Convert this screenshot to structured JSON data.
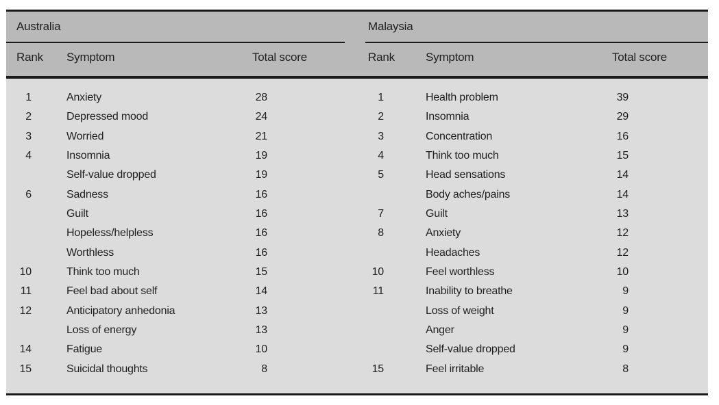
{
  "figure": {
    "colors": {
      "header_bg": "#b9b9b9",
      "body_bg": "#dcdcdd",
      "rule": "#1a1a1a",
      "text": "#1f1f1f"
    },
    "groups": [
      {
        "country": "Australia",
        "headers": {
          "rank": "Rank",
          "symptom": "Symptom",
          "score": "Total score"
        },
        "rows": [
          {
            "rank": "1",
            "symptom": "Anxiety",
            "score": "28"
          },
          {
            "rank": "2",
            "symptom": "Depressed mood",
            "score": "24"
          },
          {
            "rank": "3",
            "symptom": "Worried",
            "score": "21"
          },
          {
            "rank": "4",
            "symptom": "Insomnia",
            "score": "19"
          },
          {
            "rank": "",
            "symptom": "Self-value dropped",
            "score": "19"
          },
          {
            "rank": "6",
            "symptom": "Sadness",
            "score": "16"
          },
          {
            "rank": "",
            "symptom": "Guilt",
            "score": "16"
          },
          {
            "rank": "",
            "symptom": "Hopeless/helpless",
            "score": "16"
          },
          {
            "rank": "",
            "symptom": "Worthless",
            "score": "16"
          },
          {
            "rank": "10",
            "symptom": "Think too much",
            "score": "15"
          },
          {
            "rank": "11",
            "symptom": "Feel bad about self",
            "score": "14"
          },
          {
            "rank": "12",
            "symptom": "Anticipatory anhedonia",
            "score": "13"
          },
          {
            "rank": "",
            "symptom": "Loss of energy",
            "score": "13"
          },
          {
            "rank": "14",
            "symptom": "Fatigue",
            "score": "10"
          },
          {
            "rank": "15",
            "symptom": "Suicidal thoughts",
            "score": "8"
          }
        ]
      },
      {
        "country": "Malaysia",
        "headers": {
          "rank": "Rank",
          "symptom": "Symptom",
          "score": "Total score"
        },
        "rows": [
          {
            "rank": "1",
            "symptom": "Health problem",
            "score": "39"
          },
          {
            "rank": "2",
            "symptom": "Insomnia",
            "score": "29"
          },
          {
            "rank": "3",
            "symptom": "Concentration",
            "score": "16"
          },
          {
            "rank": "4",
            "symptom": "Think too much",
            "score": "15"
          },
          {
            "rank": "5",
            "symptom": "Head sensations",
            "score": "14"
          },
          {
            "rank": "",
            "symptom": "Body aches/pains",
            "score": "14"
          },
          {
            "rank": "7",
            "symptom": "Guilt",
            "score": "13"
          },
          {
            "rank": "8",
            "symptom": "Anxiety",
            "score": "12"
          },
          {
            "rank": "",
            "symptom": "Headaches",
            "score": "12"
          },
          {
            "rank": "10",
            "symptom": "Feel worthless",
            "score": "10"
          },
          {
            "rank": "11",
            "symptom": "Inability to breathe",
            "score": "9"
          },
          {
            "rank": "",
            "symptom": "Loss of weight",
            "score": "9"
          },
          {
            "rank": "",
            "symptom": "Anger",
            "score": "9"
          },
          {
            "rank": "",
            "symptom": "Self-value dropped",
            "score": "9"
          },
          {
            "rank": "15",
            "symptom": "Feel irritable",
            "score": "8"
          }
        ]
      }
    ]
  }
}
